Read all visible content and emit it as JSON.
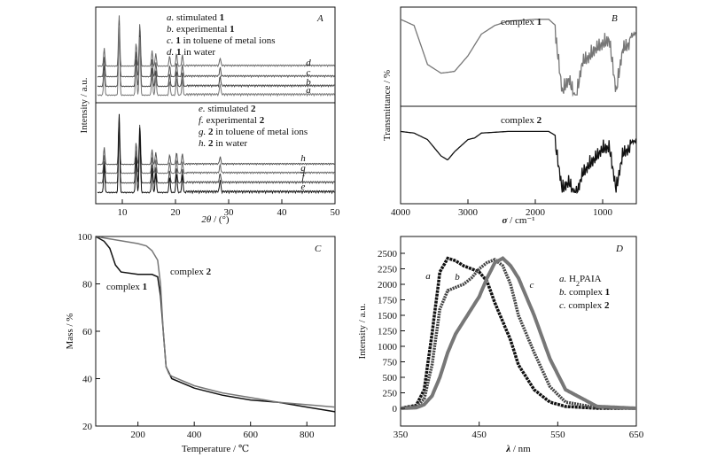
{
  "chart_data": [
    {
      "panel": "A",
      "type": "line",
      "xlabel": "2θ / (°)",
      "ylabel": "Intensity / a.u.",
      "xlim": [
        5,
        50
      ],
      "xticks": [
        10,
        20,
        30,
        40,
        50
      ],
      "peaks_2theta": [
        6.6,
        9.4,
        12.6,
        13.3,
        15.6,
        16.3,
        18.9,
        20.2,
        21.3,
        28.4
      ],
      "legend_top": [
        "a. stimulated 1",
        "b. experimental 1",
        "c. 1 in toluene of metal ions",
        "d. 1 in water"
      ],
      "legend_bottom": [
        "e. stimulated 2",
        "f. experimental 2",
        "g. 2 in toluene of metal ions",
        "h. 2 in water"
      ],
      "curve_letters_top": [
        "d",
        "c",
        "b",
        "a"
      ],
      "curve_letters_bottom": [
        "h",
        "g",
        "f",
        "e"
      ]
    },
    {
      "panel": "B",
      "type": "line",
      "xlabel": "σ / cm⁻¹",
      "ylabel": "Transmittance / %",
      "xlim": [
        4000,
        500
      ],
      "xticks": [
        4000,
        3000,
        2000,
        1000
      ],
      "series": [
        {
          "name": "complex 1",
          "x": [
            4000,
            3800,
            3600,
            3400,
            3200,
            3000,
            2800,
            2600,
            2400,
            2000,
            1800,
            1700,
            1600,
            1500,
            1400,
            1300,
            1200,
            1100,
            1000,
            900,
            800,
            700,
            600,
            500
          ],
          "y": [
            92,
            85,
            40,
            30,
            32,
            50,
            75,
            85,
            90,
            92,
            92,
            85,
            20,
            35,
            10,
            55,
            60,
            70,
            75,
            80,
            20,
            70,
            75,
            80
          ]
        },
        {
          "name": "complex 2",
          "x": [
            4000,
            3800,
            3600,
            3400,
            3300,
            3200,
            3000,
            2900,
            2800,
            2400,
            2000,
            1800,
            1700,
            1600,
            1500,
            1400,
            1300,
            1200,
            1100,
            1000,
            900,
            800,
            700,
            600,
            500
          ],
          "y": [
            80,
            78,
            70,
            50,
            45,
            55,
            70,
            72,
            78,
            80,
            80,
            80,
            75,
            20,
            30,
            10,
            40,
            50,
            60,
            70,
            72,
            20,
            65,
            70,
            72
          ]
        }
      ]
    },
    {
      "panel": "C",
      "type": "line",
      "xlabel": "Temperature / ℃",
      "ylabel": "Mass / %",
      "xlim": [
        50,
        900
      ],
      "ylim": [
        20,
        100
      ],
      "xticks": [
        200,
        400,
        600,
        800
      ],
      "yticks": [
        20,
        40,
        60,
        80,
        100
      ],
      "series": [
        {
          "name": "complex 1",
          "x": [
            50,
            80,
            100,
            120,
            140,
            200,
            250,
            270,
            280,
            290,
            300,
            320,
            400,
            500,
            600,
            700,
            800,
            900
          ],
          "y": [
            100,
            98,
            95,
            88,
            85,
            84,
            84,
            83,
            75,
            60,
            45,
            40,
            36,
            33,
            31,
            30,
            28,
            26
          ]
        },
        {
          "name": "complex 2",
          "x": [
            50,
            100,
            150,
            200,
            230,
            250,
            270,
            280,
            290,
            300,
            310,
            320,
            400,
            500,
            600,
            700,
            800,
            900
          ],
          "y": [
            100,
            99,
            98,
            97,
            96,
            94,
            90,
            80,
            60,
            45,
            42,
            41,
            37,
            34,
            32,
            30,
            29,
            28
          ]
        }
      ],
      "labels": [
        "complex 1",
        "complex 2"
      ]
    },
    {
      "panel": "D",
      "type": "line",
      "xlabel": "λ / nm",
      "ylabel": "Intensity / a.u.",
      "xlim": [
        350,
        650
      ],
      "ylim": [
        0,
        2500
      ],
      "xticks": [
        350,
        450,
        550,
        650
      ],
      "yticks": [
        0,
        250,
        500,
        750,
        1000,
        1250,
        1500,
        1750,
        2000,
        2250,
        2500
      ],
      "series": [
        {
          "name": "a. H2PAIA",
          "x": [
            350,
            370,
            380,
            390,
            400,
            410,
            420,
            430,
            440,
            450,
            460,
            470,
            480,
            490,
            500,
            520,
            540,
            560,
            600,
            650
          ],
          "y": [
            0,
            50,
            300,
            1200,
            2200,
            2420,
            2380,
            2300,
            2250,
            2200,
            2050,
            1700,
            1400,
            1100,
            700,
            300,
            100,
            30,
            0,
            0
          ]
        },
        {
          "name": "b. complex 1",
          "x": [
            350,
            370,
            380,
            390,
            400,
            410,
            420,
            430,
            440,
            450,
            460,
            470,
            480,
            490,
            500,
            520,
            540,
            560,
            600,
            650
          ],
          "y": [
            0,
            30,
            150,
            700,
            1600,
            1900,
            1950,
            2000,
            2100,
            2250,
            2350,
            2400,
            2300,
            2000,
            1500,
            900,
            350,
            100,
            10,
            0
          ]
        },
        {
          "name": "c. complex 2",
          "x": [
            350,
            370,
            380,
            390,
            400,
            410,
            420,
            430,
            440,
            450,
            460,
            470,
            480,
            490,
            500,
            520,
            540,
            560,
            600,
            650
          ],
          "y": [
            0,
            10,
            60,
            200,
            500,
            900,
            1200,
            1400,
            1600,
            1800,
            2100,
            2350,
            2420,
            2300,
            2100,
            1500,
            800,
            300,
            30,
            0
          ]
        }
      ]
    }
  ],
  "panels": {
    "A": {
      "letter": "A",
      "ylabel": "Intensity / a.u.",
      "x_symbol": "2θ",
      "x_unit": "/ (°)",
      "ticks": [
        "10",
        "20",
        "30",
        "40",
        "50"
      ],
      "legend_top": [
        {
          "l": "a.",
          "t": "stimulated ",
          "b": "1",
          "s": ""
        },
        {
          "l": "b.",
          "t": "experimental ",
          "b": "1",
          "s": ""
        },
        {
          "l": "c.",
          "t": "",
          "b": "1",
          "s": " in toluene of metal ions"
        },
        {
          "l": "d.",
          "t": "",
          "b": "1",
          "s": " in water"
        }
      ],
      "legend_bottom": [
        {
          "l": "e.",
          "t": "stimulated ",
          "b": "2",
          "s": ""
        },
        {
          "l": "f.",
          "t": "experimental ",
          "b": "2",
          "s": ""
        },
        {
          "l": "g.",
          "t": "",
          "b": "2",
          "s": " in toluene of metal ions"
        },
        {
          "l": "h.",
          "t": "",
          "b": "2",
          "s": " in water"
        }
      ],
      "letters_top": [
        "d",
        "c",
        "b",
        "a"
      ],
      "letters_bottom": [
        "h",
        "g",
        "f",
        "e"
      ]
    },
    "B": {
      "letter": "B",
      "ylabel": "Transmittance / %",
      "x_symbol": "σ",
      "x_unit": "/ cm⁻¹",
      "ticks": [
        "4000",
        "3000",
        "2000",
        "1000"
      ],
      "label1_prefix": "complex ",
      "label1_bold": "1",
      "label2_prefix": "complex ",
      "label2_bold": "2"
    },
    "C": {
      "letter": "C",
      "ylabel": "Mass / %",
      "xlabel": "Temperature / ℃",
      "xticks": [
        "200",
        "400",
        "600",
        "800"
      ],
      "yticks": [
        "20",
        "40",
        "60",
        "80",
        "100"
      ],
      "label1_prefix": "complex ",
      "label1_bold": "1",
      "label2_prefix": "complex ",
      "label2_bold": "2"
    },
    "D": {
      "letter": "D",
      "ylabel": "Intensity / a.u.",
      "x_symbol": "λ",
      "x_unit": "/ nm",
      "xticks": [
        "350",
        "450",
        "550",
        "650"
      ],
      "yticks": [
        "0",
        "250",
        "500",
        "750",
        "1000",
        "1250",
        "1500",
        "1750",
        "2000",
        "2250",
        "2500"
      ],
      "legend": [
        {
          "l": "a.",
          "t": "H",
          "sub": "2",
          "t2": "PAIA",
          "b": ""
        },
        {
          "l": "b.",
          "t": "complex ",
          "sub": "",
          "t2": "",
          "b": "1"
        },
        {
          "l": "c.",
          "t": "complex ",
          "sub": "",
          "t2": "",
          "b": "2"
        }
      ],
      "curve_letters": [
        "a",
        "b",
        "c"
      ]
    }
  }
}
